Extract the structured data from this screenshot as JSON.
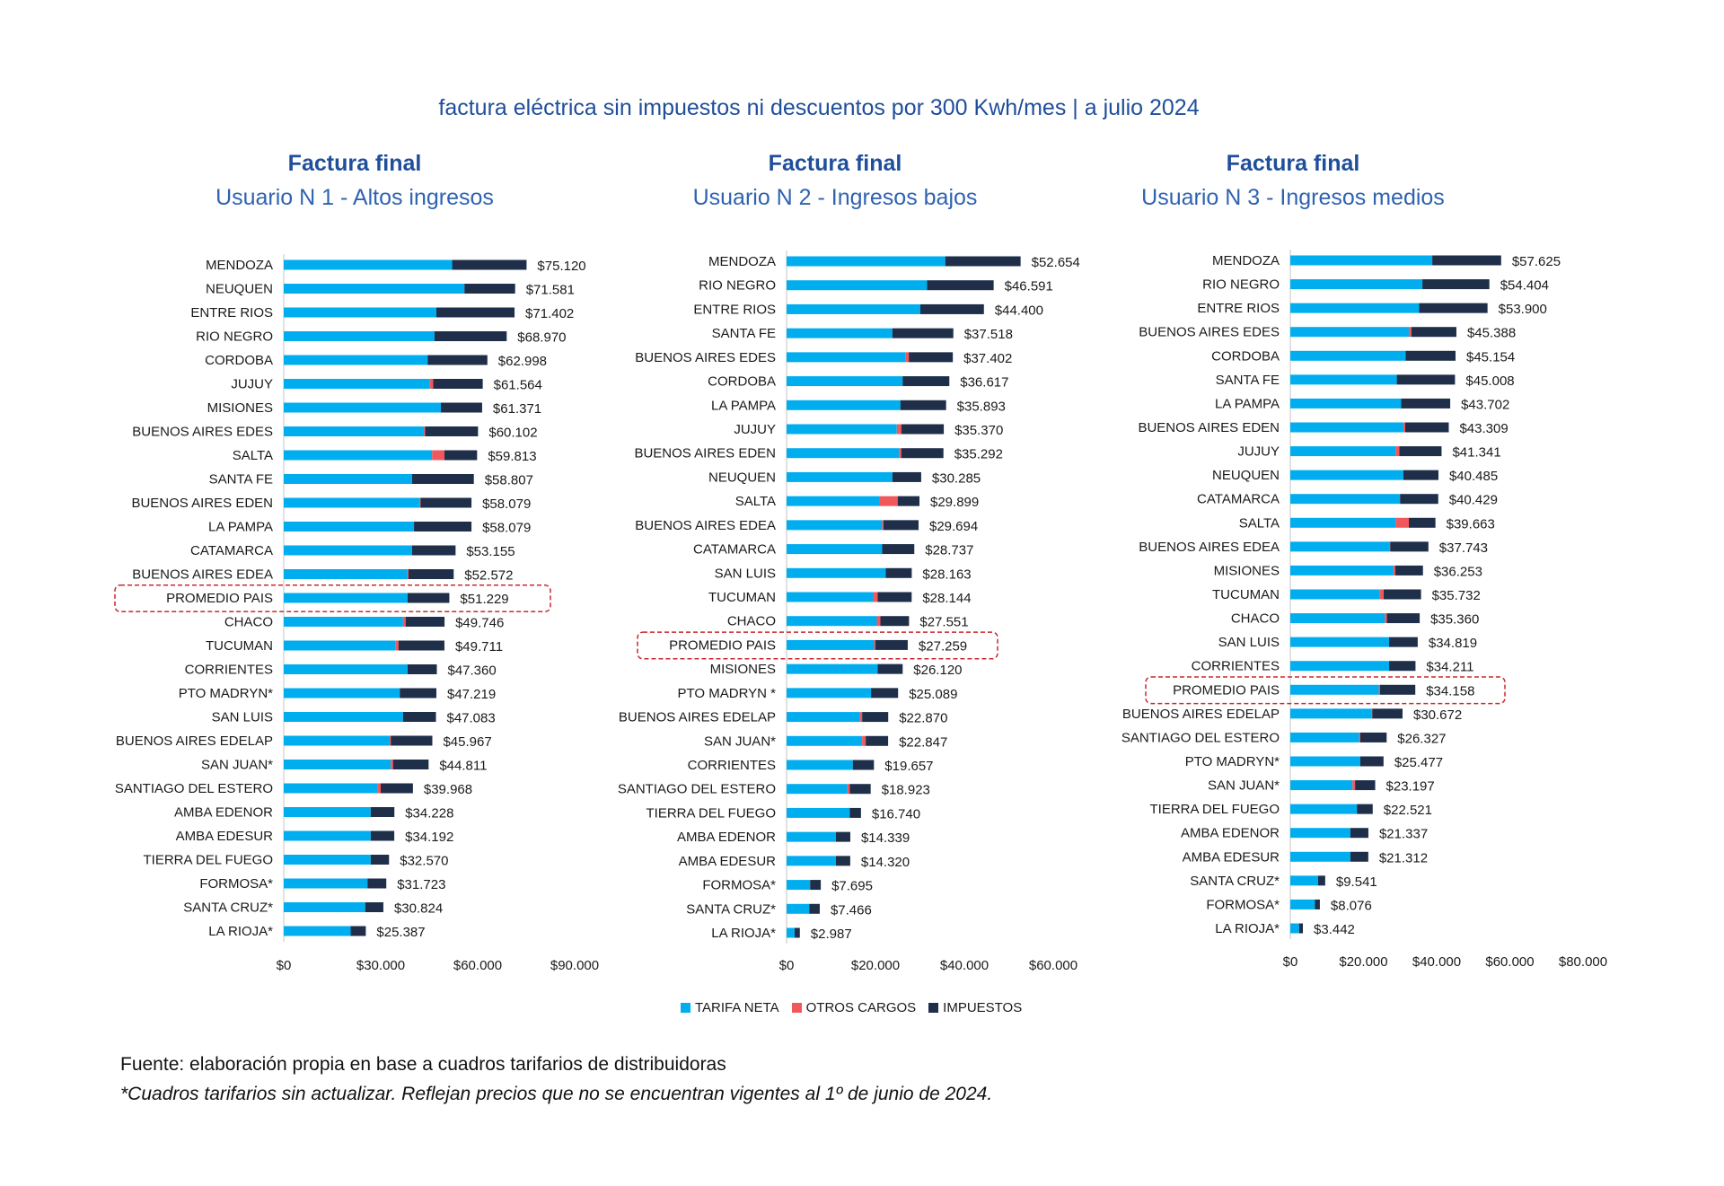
{
  "title": "factura eléctrica sin impuestos ni descuentos por 300 Kwh/mes | a julio 2024",
  "colors": {
    "tarifa_neta": "#00aeef",
    "otros_cargos": "#f0585c",
    "impuestos": "#1f2f4a",
    "highlight": "#c8282e",
    "title": "#1f4e9a"
  },
  "legend": [
    {
      "label": "TARIFA NETA",
      "color": "#00aeef"
    },
    {
      "label": "OTROS CARGOS",
      "color": "#f0585c"
    },
    {
      "label": "IMPUESTOS",
      "color": "#1f2f4a"
    }
  ],
  "source": "Fuente: elaboración propia en base a cuadros tarifarios de distribuidoras",
  "note": "*Cuadros tarifarios sin actualizar. Reflejan precios que no se encuentran vigentes al 1º de junio de 2024.",
  "chart_data": [
    {
      "type": "bar",
      "orientation": "horizontal-stacked",
      "title": "Factura final",
      "subtitle": "Usuario N 1 - Altos ingresos",
      "xlim": [
        0,
        90000
      ],
      "ticks": [
        "$0",
        "$30.000",
        "$60.000",
        "$90.000"
      ],
      "tick_values": [
        0,
        30000,
        60000,
        90000
      ],
      "highlight": "PROMEDIO PAIS",
      "categories": [
        "MENDOZA",
        "NEUQUEN",
        "ENTRE RIOS",
        "RIO NEGRO",
        "CORDOBA",
        "JUJUY",
        "MISIONES",
        "BUENOS AIRES EDES",
        "SALTA",
        "SANTA FE",
        "BUENOS AIRES EDEN",
        "LA PAMPA",
        "CATAMARCA",
        "BUENOS AIRES EDEA",
        "PROMEDIO PAIS",
        "CHACO",
        "TUCUMAN",
        "CORRIENTES",
        "PTO MADRYN*",
        "SAN LUIS",
        "BUENOS AIRES EDELAP",
        "SAN JUAN*",
        "SANTIAGO DEL ESTERO",
        "AMBA EDENOR",
        "AMBA EDESUR",
        "TIERRA DEL FUEGO",
        "FORMOSA*",
        "SANTA CRUZ*",
        "LA RIOJA*"
      ],
      "totals": [
        75120,
        71581,
        71402,
        68970,
        62998,
        61564,
        61371,
        60102,
        59813,
        58807,
        58079,
        58079,
        53155,
        52572,
        51229,
        49746,
        49711,
        47360,
        47219,
        47083,
        45967,
        44811,
        39968,
        34228,
        34192,
        32570,
        31723,
        30824,
        25387
      ],
      "labels": [
        "$75.120",
        "$71.581",
        "$71.402",
        "$68.970",
        "$62.998",
        "$61.564",
        "$61.371",
        "$60.102",
        "$59.813",
        "$58.807",
        "$58.079",
        "$58.079",
        "$53.155",
        "$52.572",
        "$51.229",
        "$49.746",
        "$49.711",
        "$47.360",
        "$47.219",
        "$47.083",
        "$45.967",
        "$44.811",
        "$39.968",
        "$34.228",
        "$34.192",
        "$32.570",
        "$31.723",
        "$30.824",
        "$25.387"
      ],
      "series": [
        {
          "name": "TARIFA NETA",
          "values": [
            52100,
            55900,
            47200,
            46600,
            44500,
            45200,
            48600,
            43400,
            45900,
            39700,
            42000,
            40300,
            39700,
            38300,
            38300,
            36900,
            34500,
            38300,
            35900,
            36900,
            32800,
            33100,
            29000,
            26900,
            26900,
            26900,
            25900,
            25200,
            20700
          ]
        },
        {
          "name": "OTROS CARGOS",
          "values": [
            0,
            0,
            0,
            0,
            0,
            1000,
            0,
            300,
            3800,
            0,
            300,
            0,
            0,
            300,
            0,
            800,
            1000,
            0,
            0,
            0,
            300,
            700,
            1000,
            0,
            0,
            0,
            0,
            0,
            0
          ]
        }
      ]
    },
    {
      "type": "bar",
      "orientation": "horizontal-stacked",
      "title": "Factura final",
      "subtitle": "Usuario N 2 - Ingresos bajos",
      "xlim": [
        0,
        60000
      ],
      "ticks": [
        "$0",
        "$20.000",
        "$40.000",
        "$60.000"
      ],
      "tick_values": [
        0,
        20000,
        40000,
        60000
      ],
      "highlight": "PROMEDIO PAIS",
      "categories": [
        "MENDOZA",
        "RIO NEGRO",
        "ENTRE RIOS",
        "SANTA FE",
        "BUENOS AIRES EDES",
        "CORDOBA",
        "LA PAMPA",
        "JUJUY",
        "BUENOS AIRES EDEN",
        "NEUQUEN",
        "SALTA",
        "BUENOS AIRES EDEA",
        "CATAMARCA",
        "SAN LUIS",
        "TUCUMAN",
        "CHACO",
        "PROMEDIO PAIS",
        "MISIONES",
        "PTO MADRYN *",
        "BUENOS AIRES EDELAP",
        "SAN JUAN*",
        "CORRIENTES",
        "SANTIAGO DEL ESTERO",
        "TIERRA DEL FUEGO",
        "AMBA EDENOR",
        "AMBA EDESUR",
        "FORMOSA*",
        "SANTA CRUZ*",
        "LA RIOJA*"
      ],
      "totals": [
        52654,
        46591,
        44400,
        37518,
        37402,
        36617,
        35893,
        35370,
        35292,
        30285,
        29899,
        29694,
        28737,
        28163,
        28144,
        27551,
        27259,
        26120,
        25089,
        22870,
        22847,
        19657,
        18923,
        16740,
        14339,
        14320,
        7695,
        7466,
        2987
      ],
      "labels": [
        "$52.654",
        "$46.591",
        "$44.400",
        "$37.518",
        "$37.402",
        "$36.617",
        "$35.893",
        "$35.370",
        "$35.292",
        "$30.285",
        "$29.899",
        "$29.694",
        "$28.737",
        "$28.163",
        "$28.144",
        "$27.551",
        "$27.259",
        "$26.120",
        "$25.089",
        "$22.870",
        "$22.847",
        "$19.657",
        "$18.923",
        "$16.740",
        "$14.339",
        "$14.320",
        "$7.695",
        "$7.466",
        "$2.987"
      ],
      "series": [
        {
          "name": "TARIFA NETA",
          "values": [
            35700,
            31600,
            30100,
            23800,
            26800,
            26100,
            25600,
            24800,
            25300,
            23800,
            21000,
            21500,
            21500,
            22300,
            19500,
            20300,
            19700,
            20500,
            19000,
            16500,
            17000,
            14900,
            13700,
            14200,
            11100,
            11100,
            5300,
            5100,
            1800
          ]
        },
        {
          "name": "OTROS CARGOS",
          "values": [
            0,
            0,
            0,
            0,
            700,
            0,
            0,
            1000,
            500,
            0,
            4000,
            300,
            0,
            0,
            1000,
            800,
            300,
            0,
            0,
            500,
            800,
            0,
            500,
            0,
            0,
            0,
            0,
            0,
            0
          ]
        }
      ]
    },
    {
      "type": "bar",
      "orientation": "horizontal-stacked",
      "title": "Factura final",
      "subtitle": "Usuario N 3 - Ingresos medios",
      "xlim": [
        0,
        80000
      ],
      "ticks": [
        "$0",
        "$20.000",
        "$40.000",
        "$60.000",
        "$80.000"
      ],
      "tick_values": [
        0,
        20000,
        40000,
        60000,
        80000
      ],
      "highlight": "PROMEDIO PAIS",
      "categories": [
        "MENDOZA",
        "RIO NEGRO",
        "ENTRE RIOS",
        "BUENOS AIRES EDES",
        "CORDOBA",
        "SANTA FE",
        "LA PAMPA",
        "BUENOS AIRES EDEN",
        "JUJUY",
        "NEUQUEN",
        "CATAMARCA",
        "SALTA",
        "BUENOS AIRES EDEA",
        "MISIONES",
        "TUCUMAN",
        "CHACO",
        "SAN LUIS",
        "CORRIENTES",
        "PROMEDIO PAIS",
        "BUENOS AIRES EDELAP",
        "SANTIAGO DEL ESTERO",
        "PTO MADRYN*",
        "SAN JUAN*",
        "TIERRA DEL FUEGO",
        "AMBA EDENOR",
        "AMBA EDESUR",
        "SANTA CRUZ*",
        "FORMOSA*",
        "LA RIOJA*"
      ],
      "totals": [
        57625,
        54404,
        53900,
        45388,
        45154,
        45008,
        43702,
        43309,
        41341,
        40485,
        40429,
        39663,
        37743,
        36253,
        35732,
        35360,
        34819,
        34211,
        34158,
        30672,
        26327,
        25477,
        23197,
        22521,
        21337,
        21312,
        9541,
        8076,
        3442
      ],
      "labels": [
        "$57.625",
        "$54.404",
        "$53.900",
        "$45.388",
        "$45.154",
        "$45.008",
        "$43.702",
        "$43.309",
        "$41.341",
        "$40.485",
        "$40.429",
        "$39.663",
        "$37.743",
        "$36.253",
        "$35.732",
        "$35.360",
        "$34.819",
        "$34.211",
        "$34.158",
        "$30.672",
        "$26.327",
        "$25.477",
        "$23.197",
        "$22.521",
        "$21.337",
        "$21.312",
        "$9.541",
        "$8.076",
        "$3.442"
      ],
      "series": [
        {
          "name": "TARIFA NETA",
          "values": [
            38800,
            36100,
            35200,
            32400,
            31500,
            29100,
            30300,
            30900,
            28800,
            30900,
            30000,
            28800,
            27000,
            28200,
            24500,
            25800,
            27000,
            27000,
            24200,
            22100,
            18800,
            19100,
            17000,
            18200,
            16400,
            16400,
            7600,
            6700,
            2400
          ]
        },
        {
          "name": "OTROS CARGOS",
          "values": [
            0,
            0,
            0,
            700,
            0,
            0,
            0,
            500,
            1000,
            0,
            0,
            3600,
            300,
            500,
            1000,
            600,
            0,
            0,
            300,
            300,
            300,
            0,
            700,
            0,
            0,
            0,
            0,
            0,
            0
          ]
        }
      ]
    }
  ]
}
